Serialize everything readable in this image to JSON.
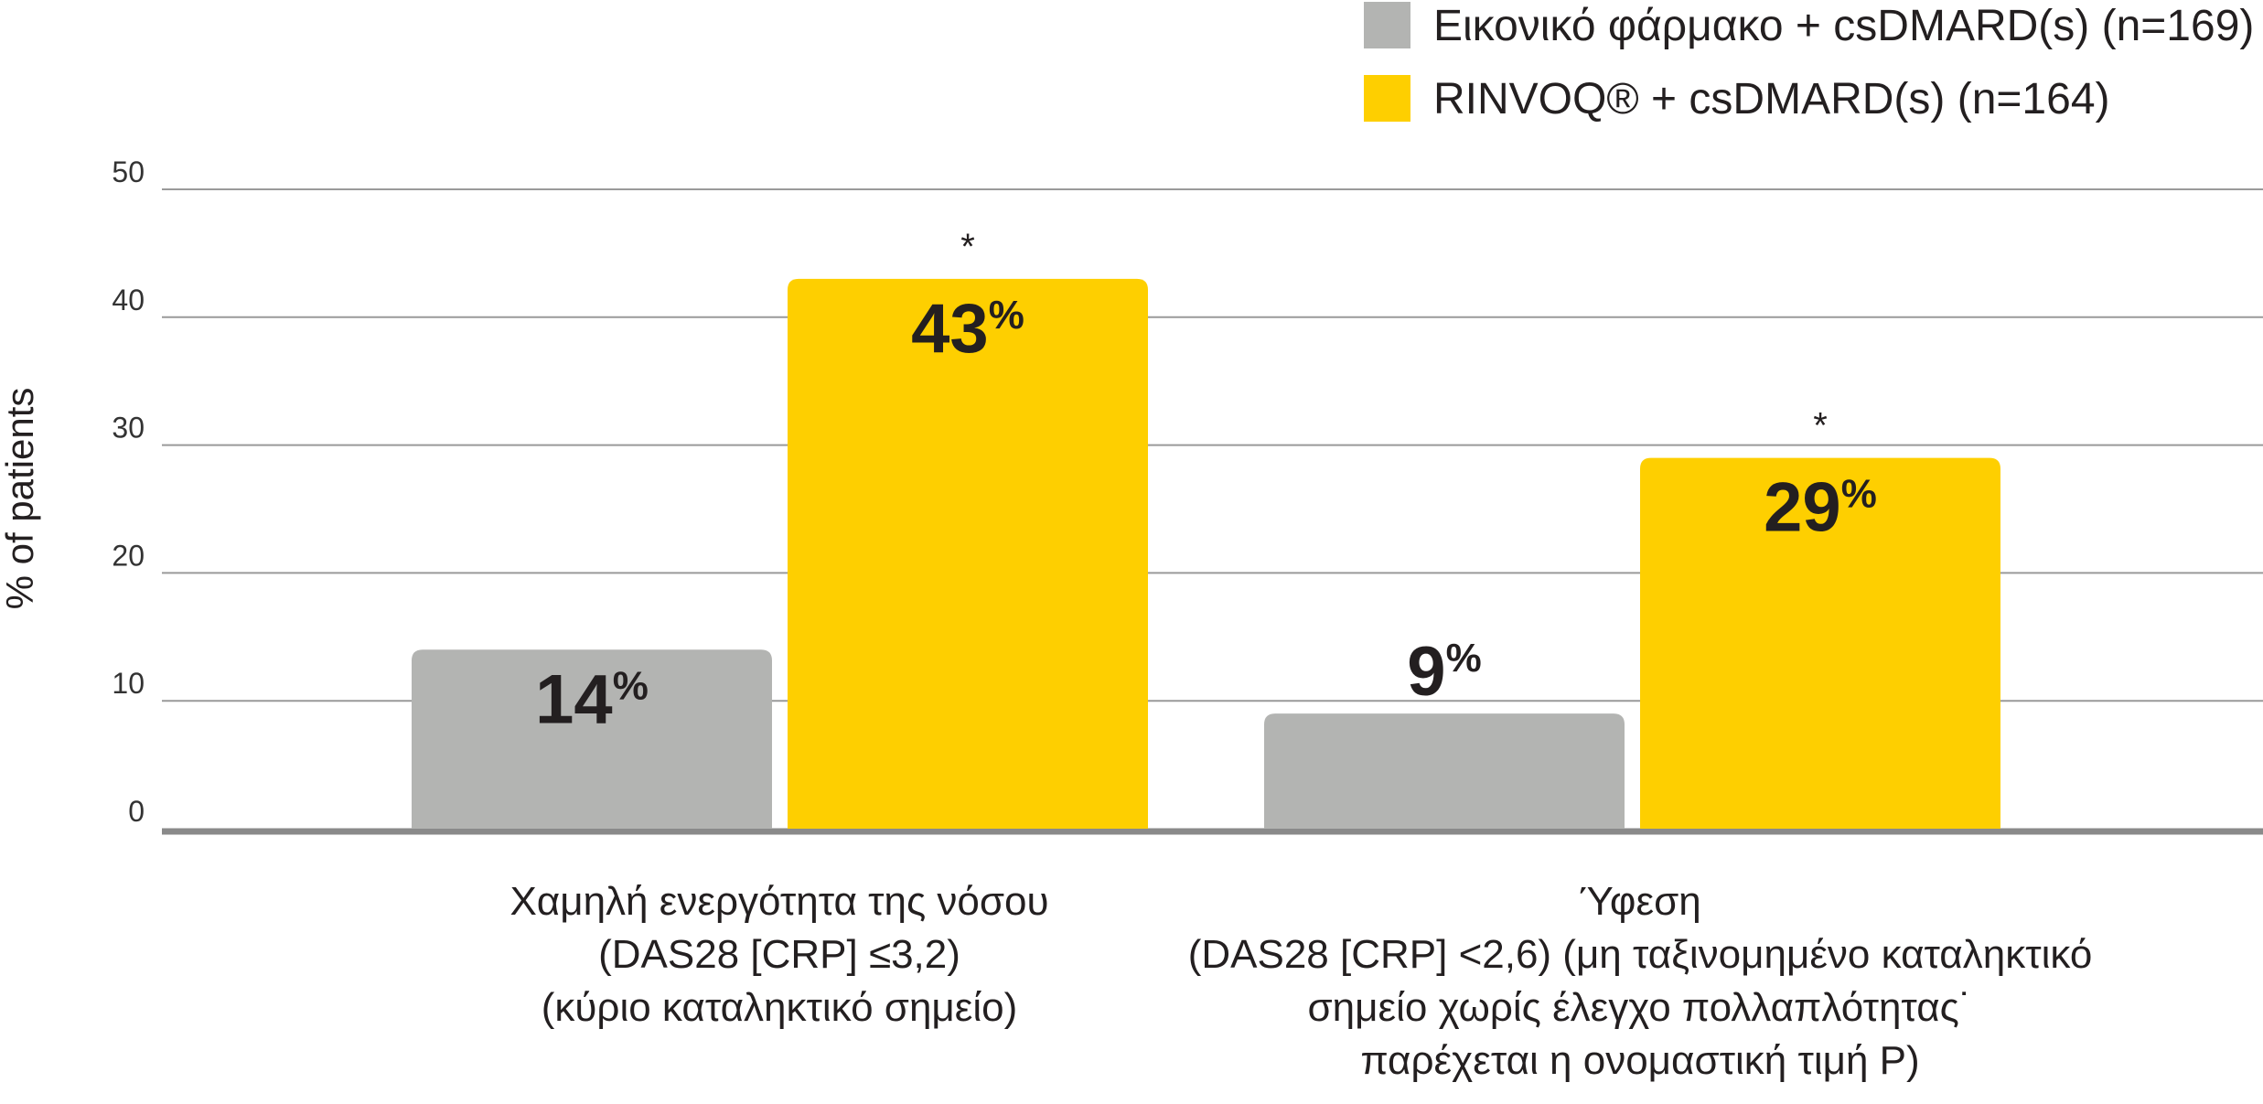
{
  "chart_data": {
    "type": "bar",
    "title": "",
    "xlabel": "",
    "ylabel": "% of patients",
    "ylim": [
      0,
      50
    ],
    "yticks": [
      "0",
      "10",
      "20",
      "30",
      "40",
      "50"
    ],
    "grid": true,
    "legend_position": "top-right",
    "categories": [
      {
        "lines": [
          "Χαμηλή ενεργότητα της νόσου",
          "(DAS28 [CRP] ≤3,2)",
          "(κύριο καταληκτικό σημείο)"
        ]
      },
      {
        "lines": [
          "Ύφεση",
          "(DAS28 [CRP] <2,6) (μη ταξινομημένο καταληκτικό",
          "σημείο χωρίς έλεγχο πολλαπλότητας˙",
          "παρέχεται η ονομαστική τιμή P)"
        ]
      }
    ],
    "series": [
      {
        "name": "Εικονικό φάρμακο + csDMARD(s) (n=169)",
        "color": "#b3b4b2",
        "values": [
          14,
          9
        ],
        "labels": [
          "14",
          "9"
        ],
        "label_position": [
          "inside",
          "above"
        ],
        "markers": [
          "",
          ""
        ]
      },
      {
        "name": "RINVOQ® + csDMARD(s) (n=164)",
        "color": "#fecf00",
        "values": [
          43,
          29
        ],
        "labels": [
          "43",
          "29"
        ],
        "label_position": [
          "inside",
          "inside"
        ],
        "markers": [
          "*",
          "*"
        ]
      }
    ],
    "percent_sign": "%"
  }
}
